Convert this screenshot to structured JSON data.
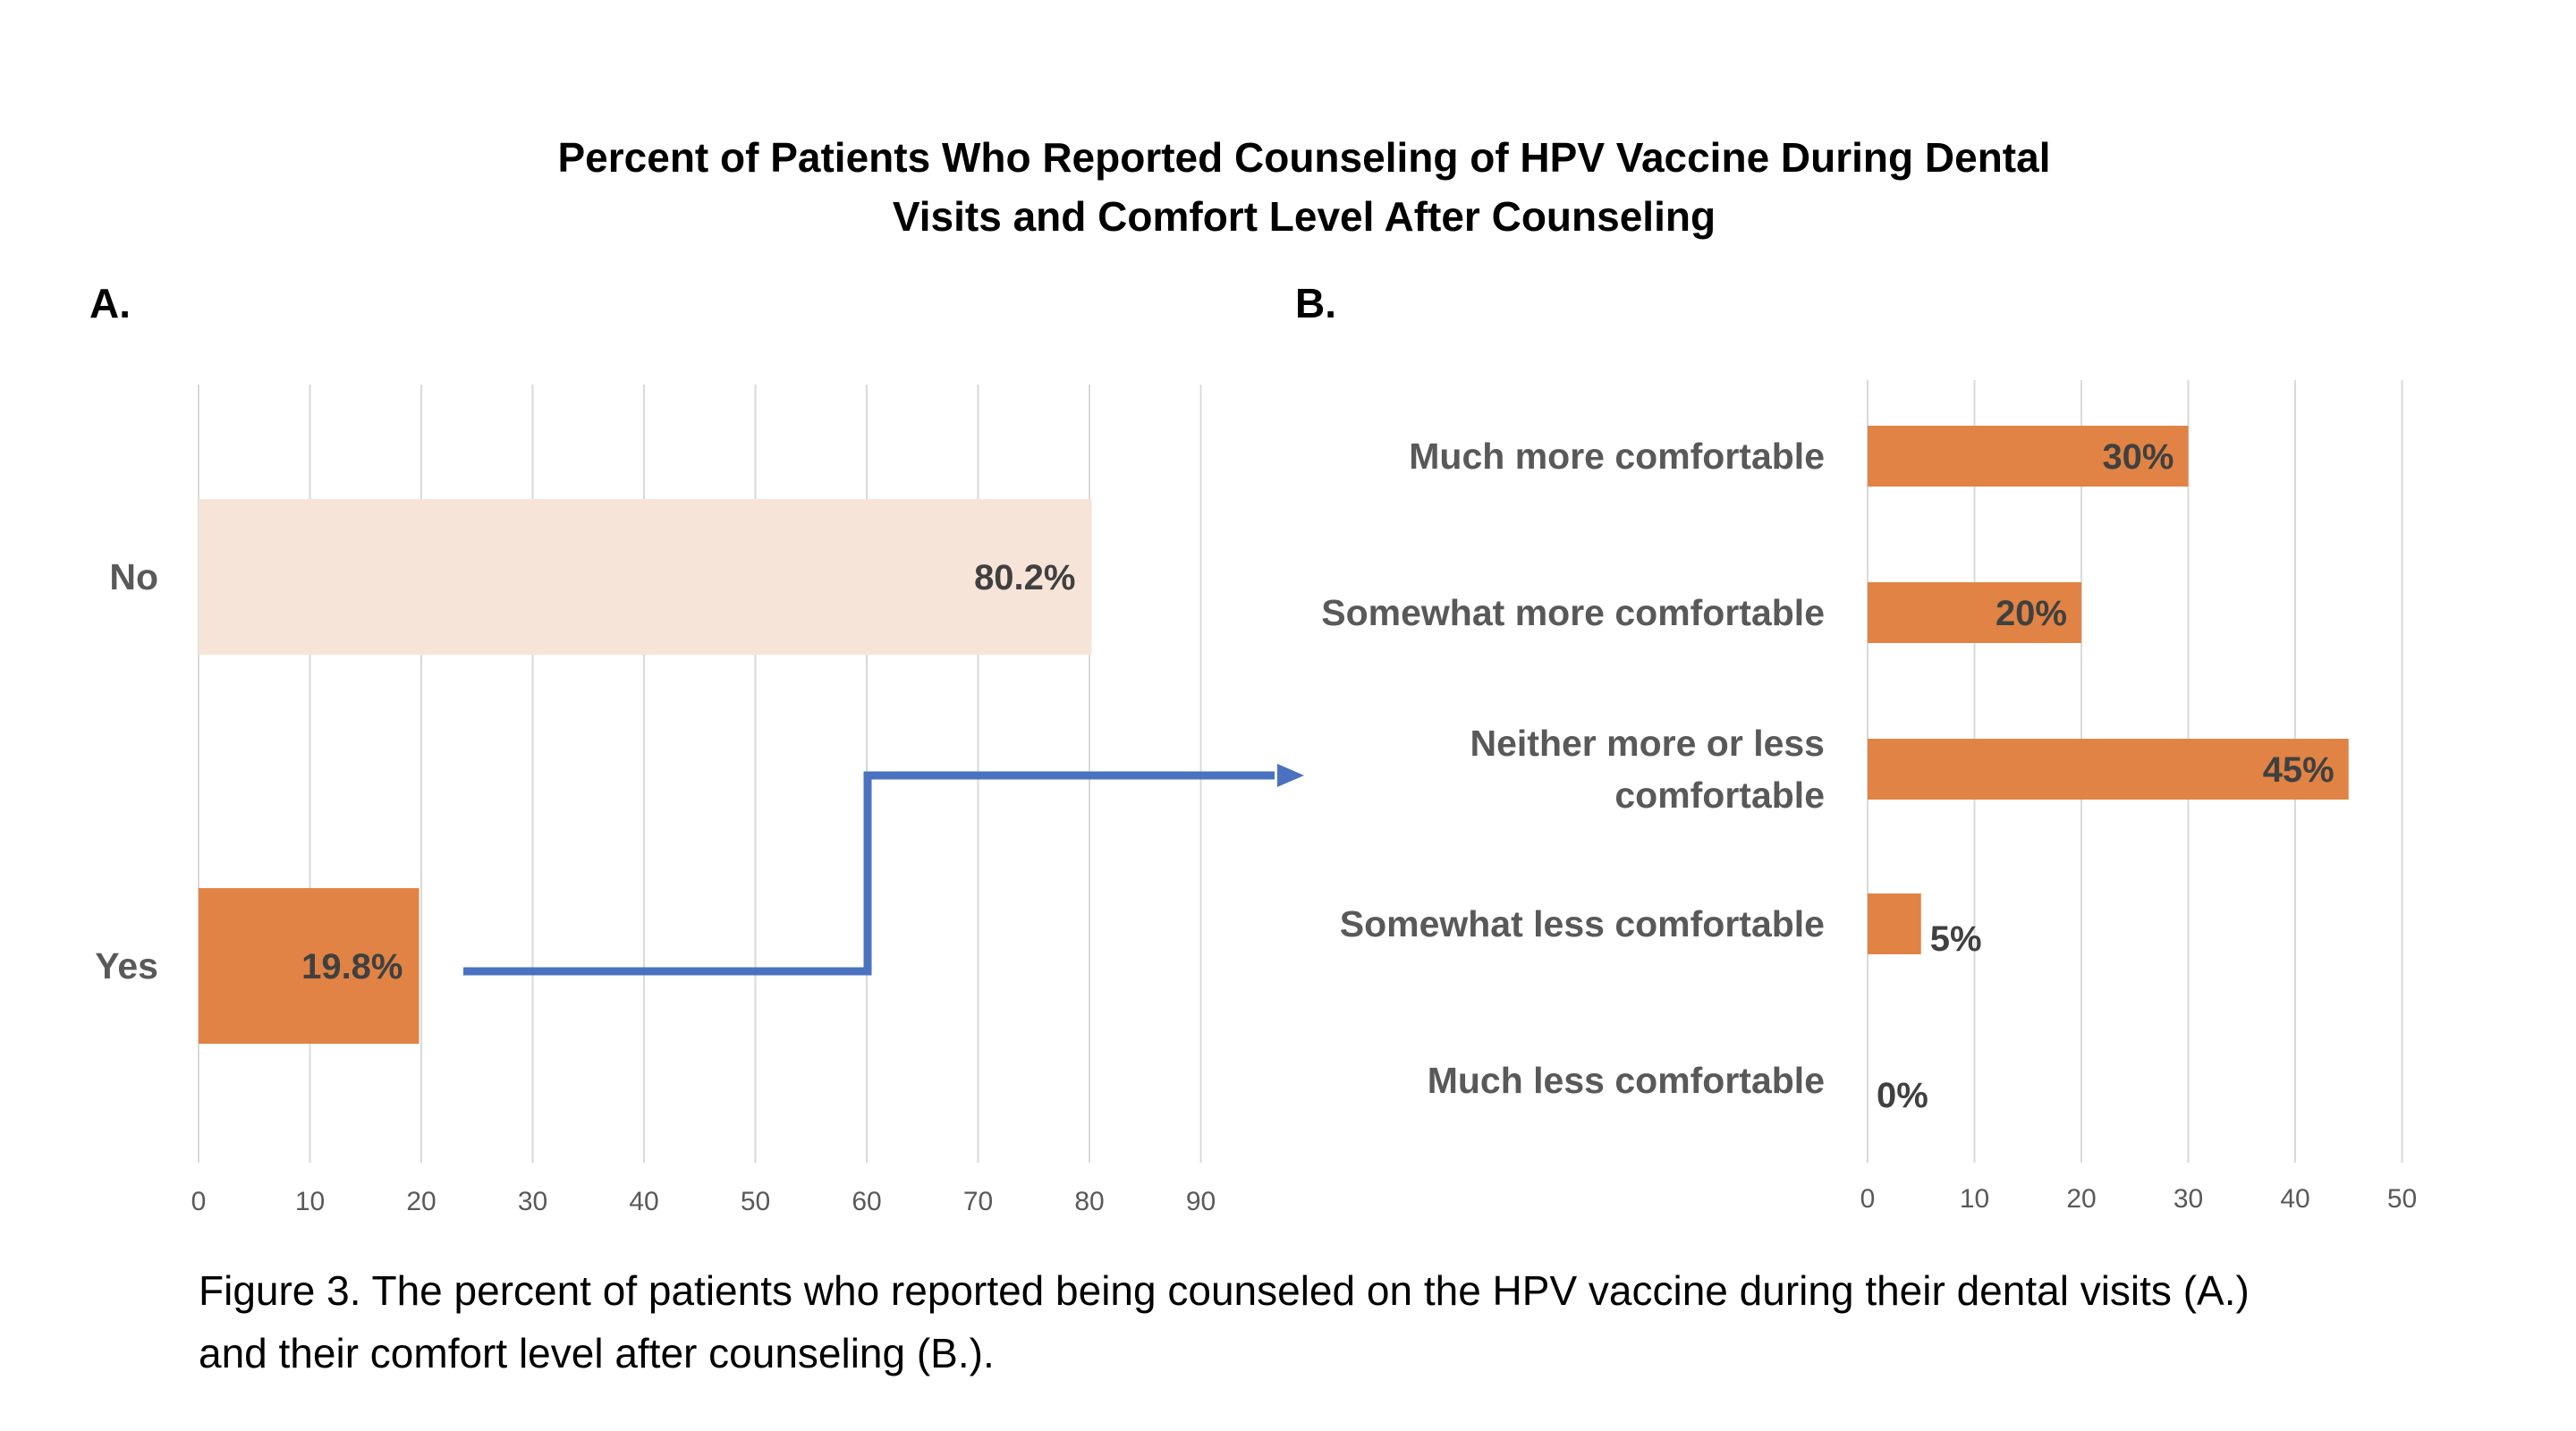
{
  "title_line1": "Percent of Patients Who Reported Counseling of HPV Vaccine During Dental",
  "title_line2": "Visits and Comfort Level After Counseling",
  "caption_line1": "Figure 3. The percent of patients who reported being counseled on the HPV vaccine during their dental visits (A.)",
  "caption_line2": "and their comfort level after counseling (B.).",
  "colors": {
    "highlight": "#E08344",
    "muted": "#F7E4D8",
    "arrow": "#4A72C0"
  },
  "chart_data": [
    {
      "panel": "A.",
      "type": "bar",
      "orientation": "horizontal",
      "categories": [
        "No",
        "Yes"
      ],
      "values": [
        80.2,
        19.8
      ],
      "data_labels": [
        "80.2%",
        "19.8%"
      ],
      "bar_colors": [
        "#F7E4D8",
        "#E08344"
      ],
      "xlim": [
        0,
        90
      ],
      "xticks": [
        0,
        10,
        20,
        30,
        40,
        50,
        60,
        70,
        80,
        90
      ],
      "grid": true
    },
    {
      "panel": "B.",
      "type": "bar",
      "orientation": "horizontal",
      "categories": [
        "Much more comfortable",
        "Somewhat more comfortable",
        "Neither more or less comfortable",
        "Somewhat less comfortable",
        "Much less comfortable"
      ],
      "category_lines": [
        [
          "Much more comfortable"
        ],
        [
          "Somewhat more comfortable"
        ],
        [
          "Neither more or less",
          "comfortable"
        ],
        [
          "Somewhat less comfortable"
        ],
        [
          "Much less comfortable"
        ]
      ],
      "values": [
        30,
        20,
        45,
        5,
        0
      ],
      "data_labels": [
        "30%",
        "20%",
        "45%",
        "5%",
        "0%"
      ],
      "bar_color": "#E08344",
      "xlim": [
        0,
        50
      ],
      "xticks": [
        0,
        10,
        20,
        30,
        40,
        50
      ],
      "grid": true
    }
  ]
}
